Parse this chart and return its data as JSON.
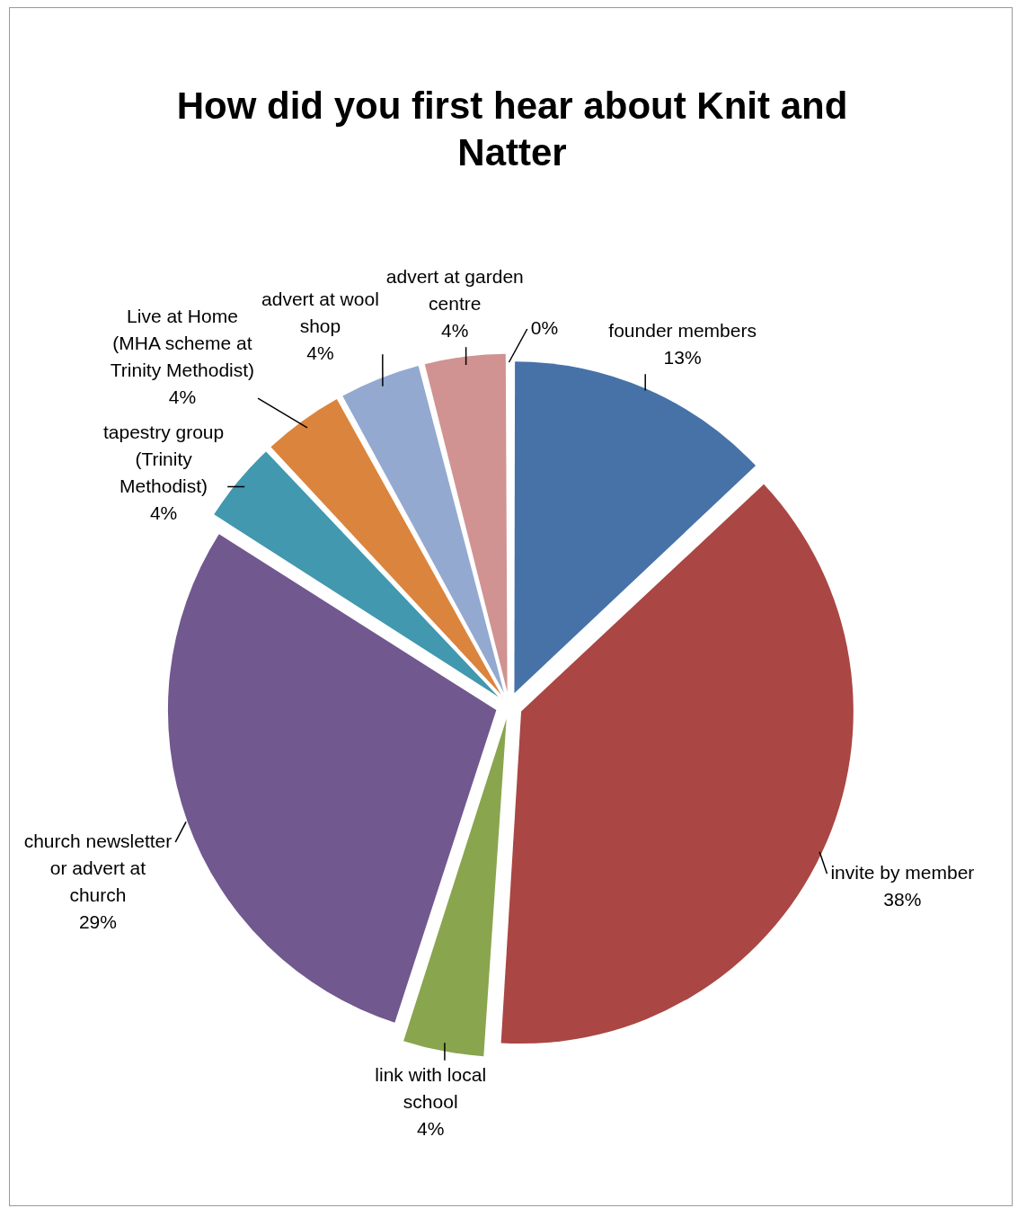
{
  "chart_data": {
    "type": "pie",
    "title": "How did you first hear about Knit and Natter",
    "categories": [
      "founder members",
      "invite by member",
      "link with local school",
      "church newsletter or advert at church",
      "tapestry group (Trinity Methodist)",
      "Live at Home (MHA scheme at Trinity Methodist)",
      "advert at wool shop",
      "advert at garden centre",
      null
    ],
    "values": [
      13,
      38,
      4,
      29,
      4,
      4,
      4,
      4,
      0
    ],
    "value_labels": [
      "13%",
      "38%",
      "4%",
      "29%",
      "4%",
      "4%",
      "4%",
      "4%",
      "0%"
    ],
    "colors": [
      "#4672a8",
      "#aa4643",
      "#89a54e",
      "#71588f",
      "#4198af",
      "#db843d",
      "#93a9d0",
      "#d09392",
      "#b9cd96"
    ],
    "legend": false
  }
}
